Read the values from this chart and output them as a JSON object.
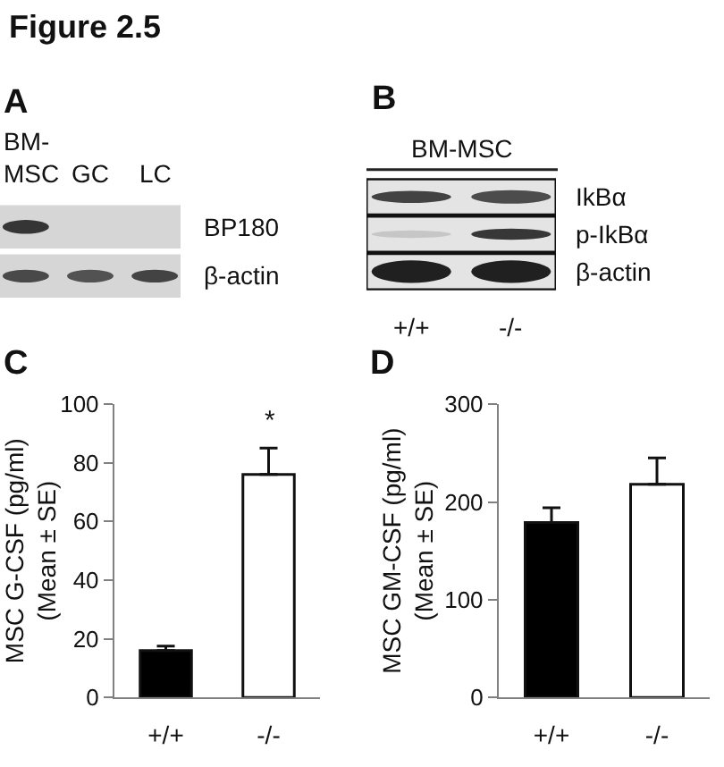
{
  "chart_data": [
    {
      "type": "other",
      "title": "A",
      "annotations": [
        "Figure 2.5"
      ],
      "categories": [
        "BM-MSC",
        "GC",
        "LC"
      ],
      "y_categories": [
        "BP180",
        "β-actin"
      ]
    },
    {
      "type": "other",
      "title": "B",
      "subtitle": "BM-MSC",
      "categories": [
        "+/+",
        "-/-"
      ],
      "y_categories": [
        "IkBα",
        "p-IkBα",
        "β-actin"
      ]
    },
    {
      "type": "bar",
      "title": "C",
      "categories": [
        "+/+",
        "-/-"
      ],
      "values": [
        16,
        76
      ],
      "colors": [
        "#000000",
        "#ffffff"
      ],
      "errors": [
        [
          16,
          17.5
        ],
        [
          76,
          85
        ]
      ],
      "ylabel": "MSC G-CSF (pg/ml)\n(Mean ± SE)",
      "ylim": [
        0,
        100
      ],
      "yticks": [
        0,
        20,
        40,
        60,
        80,
        100
      ],
      "annotations": [
        "*"
      ]
    },
    {
      "type": "bar",
      "title": "D",
      "categories": [
        "+/+",
        "-/-"
      ],
      "values": [
        179,
        218
      ],
      "colors": [
        "#000000",
        "#ffffff"
      ],
      "errors": [
        [
          179,
          194
        ],
        [
          218,
          245
        ]
      ],
      "ylabel": "MSC GM-CSF (pg/ml)\n(Mean ± SE)",
      "ylim": [
        0,
        300
      ],
      "yticks": [
        0,
        100,
        200,
        300
      ]
    }
  ]
}
